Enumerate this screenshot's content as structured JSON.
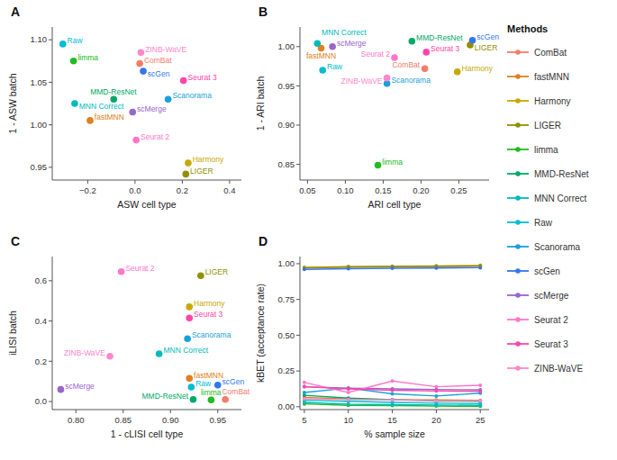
{
  "chart_data": [
    {
      "type": "scatter",
      "title": "A",
      "xlabel": "ASW cell type",
      "ylabel": "1 - ASW batch",
      "xlim": [
        -0.35,
        0.45
      ],
      "ylim": [
        0.935,
        1.115
      ],
      "xticks": [
        {
          "value": -0.2,
          "label": "−0.2"
        },
        {
          "value": 0.0,
          "label": "0.0"
        },
        0.2,
        0.4
      ],
      "yticks": [
        0.95,
        {
          "value": 1.0,
          "label": "1.00"
        },
        1.05,
        {
          "value": 1.1,
          "label": "1.10"
        }
      ],
      "grid": false,
      "series": [
        {
          "name": "ComBat",
          "color": "#f47c6a",
          "x": [
            0.02
          ],
          "values": [
            1.072
          ]
        },
        {
          "name": "fastMNN",
          "color": "#e08020",
          "x": [
            -0.19
          ],
          "values": [
            1.005
          ]
        },
        {
          "name": "Harmony",
          "color": "#c8a800",
          "x": [
            0.225
          ],
          "values": [
            0.955
          ]
        },
        {
          "name": "LIGER",
          "color": "#909000",
          "x": [
            0.215
          ],
          "values": [
            0.942
          ]
        },
        {
          "name": "limma",
          "color": "#22bb22",
          "x": [
            -0.26
          ],
          "values": [
            1.075
          ]
        },
        {
          "name": "MMD-ResNet",
          "color": "#00aa66",
          "x": [
            -0.09
          ],
          "values": [
            1.03
          ]
        },
        {
          "name": "MNN Correct",
          "color": "#00bbbb",
          "x": [
            -0.255
          ],
          "values": [
            1.025
          ]
        },
        {
          "name": "Raw",
          "color": "#00bcd4",
          "x": [
            -0.305
          ],
          "values": [
            1.095
          ]
        },
        {
          "name": "Scanorama",
          "color": "#1a9fdd",
          "x": [
            0.14
          ],
          "values": [
            1.03
          ]
        },
        {
          "name": "scGen",
          "color": "#3377ee",
          "x": [
            0.035
          ],
          "values": [
            1.063
          ]
        },
        {
          "name": "scMerge",
          "color": "#9966cc",
          "x": [
            -0.01
          ],
          "values": [
            1.015
          ]
        },
        {
          "name": "Seurat 2",
          "color": "#ff77cc",
          "x": [
            0.005
          ],
          "values": [
            0.982
          ]
        },
        {
          "name": "Seurat 3",
          "color": "#ff44aa",
          "x": [
            0.205
          ],
          "values": [
            1.052
          ]
        },
        {
          "name": "ZINB-WaVE",
          "color": "#ff88cc",
          "x": [
            0.025
          ],
          "values": [
            1.085
          ]
        }
      ]
    },
    {
      "type": "scatter",
      "title": "B",
      "xlabel": "ARI cell type",
      "ylabel": "1 - ARI batch",
      "xlim": [
        0.04,
        0.29
      ],
      "ylim": [
        0.83,
        1.025
      ],
      "xticks": [
        0.05,
        {
          "value": 0.1,
          "label": "0.10"
        },
        0.15,
        {
          "value": 0.2,
          "label": "0.20"
        },
        0.25
      ],
      "yticks": [
        0.85,
        {
          "value": 0.9,
          "label": "0.90"
        },
        0.95,
        {
          "value": 1.0,
          "label": "1.00"
        }
      ],
      "grid": false,
      "series": [
        {
          "name": "ComBat",
          "color": "#f47c6a",
          "x": [
            0.205
          ],
          "values": [
            0.972
          ]
        },
        {
          "name": "fastMNN",
          "color": "#e08020",
          "x": [
            0.068
          ],
          "values": [
            0.998
          ]
        },
        {
          "name": "Harmony",
          "color": "#c8a800",
          "x": [
            0.248
          ],
          "values": [
            0.968
          ]
        },
        {
          "name": "LIGER",
          "color": "#909000",
          "x": [
            0.265
          ],
          "values": [
            1.002
          ]
        },
        {
          "name": "limma",
          "color": "#22bb22",
          "x": [
            0.143
          ],
          "values": [
            0.849
          ]
        },
        {
          "name": "MMD-ResNet",
          "color": "#00aa66",
          "x": [
            0.188
          ],
          "values": [
            1.007
          ]
        },
        {
          "name": "MNN Correct",
          "color": "#00bbbb",
          "x": [
            0.063
          ],
          "values": [
            1.004
          ]
        },
        {
          "name": "Raw",
          "color": "#00bcd4",
          "x": [
            0.07
          ],
          "values": [
            0.97
          ]
        },
        {
          "name": "Scanorama",
          "color": "#1a9fdd",
          "x": [
            0.155
          ],
          "values": [
            0.953
          ]
        },
        {
          "name": "scGen",
          "color": "#3377ee",
          "x": [
            0.268
          ],
          "values": [
            1.008
          ]
        },
        {
          "name": "scMerge",
          "color": "#9966cc",
          "x": [
            0.083
          ],
          "values": [
            1.0
          ]
        },
        {
          "name": "Seurat 2",
          "color": "#ff77cc",
          "x": [
            0.165
          ],
          "values": [
            0.986
          ]
        },
        {
          "name": "Seurat 3",
          "color": "#ff44aa",
          "x": [
            0.207
          ],
          "values": [
            0.993
          ]
        },
        {
          "name": "ZINB-WaVE",
          "color": "#ff88cc",
          "x": [
            0.155
          ],
          "values": [
            0.96
          ]
        }
      ]
    },
    {
      "type": "scatter",
      "title": "C",
      "xlabel": "1 - cLISI cell type",
      "ylabel": "iLISI batch",
      "xlim": [
        0.775,
        0.975
      ],
      "ylim": [
        -0.04,
        0.72
      ],
      "xticks": [
        {
          "value": 0.8,
          "label": "0.80"
        },
        0.85,
        {
          "value": 0.9,
          "label": "0.90"
        },
        0.95
      ],
      "yticks": [
        {
          "value": 0.0,
          "label": "0.0"
        },
        0.2,
        0.4,
        0.6
      ],
      "grid": false,
      "series": [
        {
          "name": "ComBat",
          "color": "#f47c6a",
          "x": [
            0.958
          ],
          "values": [
            0.01
          ]
        },
        {
          "name": "fastMNN",
          "color": "#e08020",
          "x": [
            0.92
          ],
          "values": [
            0.115
          ]
        },
        {
          "name": "Harmony",
          "color": "#c8a800",
          "x": [
            0.92
          ],
          "values": [
            0.47
          ]
        },
        {
          "name": "LIGER",
          "color": "#909000",
          "x": [
            0.932
          ],
          "values": [
            0.625
          ]
        },
        {
          "name": "limma",
          "color": "#22bb22",
          "x": [
            0.943
          ],
          "values": [
            0.008
          ]
        },
        {
          "name": "MMD-ResNet",
          "color": "#00aa66",
          "x": [
            0.924
          ],
          "values": [
            0.01
          ]
        },
        {
          "name": "MNN Correct",
          "color": "#00bbbb",
          "x": [
            0.888
          ],
          "values": [
            0.237
          ]
        },
        {
          "name": "Raw",
          "color": "#00bcd4",
          "x": [
            0.922
          ],
          "values": [
            0.072
          ]
        },
        {
          "name": "Scanorama",
          "color": "#1a9fdd",
          "x": [
            0.918
          ],
          "values": [
            0.312
          ]
        },
        {
          "name": "scGen",
          "color": "#3377ee",
          "x": [
            0.95
          ],
          "values": [
            0.082
          ]
        },
        {
          "name": "scMerge",
          "color": "#9966cc",
          "x": [
            0.784
          ],
          "values": [
            0.06
          ]
        },
        {
          "name": "Seurat 2",
          "color": "#ff77cc",
          "x": [
            0.848
          ],
          "values": [
            0.645
          ]
        },
        {
          "name": "Seurat 3",
          "color": "#ff44aa",
          "x": [
            0.92
          ],
          "values": [
            0.415
          ]
        },
        {
          "name": "ZINB-WaVE",
          "color": "#ff88cc",
          "x": [
            0.836
          ],
          "values": [
            0.225
          ]
        }
      ]
    },
    {
      "type": "line",
      "title": "D",
      "xlabel": "% sample size",
      "ylabel": "kBET (acceptance rate)",
      "xlim": [
        4.5,
        26
      ],
      "ylim": [
        -0.02,
        1.05
      ],
      "xticks": [
        5,
        10,
        15,
        20,
        25
      ],
      "yticks": [
        {
          "value": 0.0,
          "label": "0.00"
        },
        0.25,
        {
          "value": 0.5,
          "label": "0.50"
        },
        0.75,
        {
          "value": 1.0,
          "label": "1.00"
        }
      ],
      "grid": false,
      "marker": "circle",
      "legend": "right",
      "legend_title": "Methods",
      "x": [
        5,
        10,
        15,
        20,
        25
      ],
      "series": [
        {
          "name": "ComBat",
          "color": "#f47c6a",
          "values": [
            0.97,
            0.975,
            0.978,
            0.98,
            0.982
          ]
        },
        {
          "name": "fastMNN",
          "color": "#e08020",
          "values": [
            0.065,
            0.055,
            0.05,
            0.048,
            0.045
          ]
        },
        {
          "name": "Harmony",
          "color": "#c8a800",
          "values": [
            0.975,
            0.98,
            0.983,
            0.985,
            0.988
          ]
        },
        {
          "name": "LIGER",
          "color": "#909000",
          "values": [
            0.972,
            0.978,
            0.98,
            0.982,
            0.985
          ]
        },
        {
          "name": "limma",
          "color": "#22bb22",
          "values": [
            0.02,
            0.01,
            0.008,
            0.005,
            0.003
          ]
        },
        {
          "name": "MMD-ResNet",
          "color": "#00aa66",
          "values": [
            0.08,
            0.06,
            0.05,
            0.04,
            0.038
          ]
        },
        {
          "name": "MNN Correct",
          "color": "#00bbbb",
          "values": [
            0.03,
            0.018,
            0.015,
            0.012,
            0.01
          ]
        },
        {
          "name": "Raw",
          "color": "#00bcd4",
          "values": [
            0.045,
            0.038,
            0.03,
            0.025,
            0.022
          ]
        },
        {
          "name": "Scanorama",
          "color": "#1a9fdd",
          "values": [
            0.1,
            0.13,
            0.09,
            0.075,
            0.095
          ]
        },
        {
          "name": "scGen",
          "color": "#3377ee",
          "values": [
            0.96,
            0.965,
            0.968,
            0.97,
            0.972
          ]
        },
        {
          "name": "scMerge",
          "color": "#9966cc",
          "values": [
            0.14,
            0.13,
            0.125,
            0.12,
            0.118
          ]
        },
        {
          "name": "Seurat 2",
          "color": "#ff77cc",
          "values": [
            0.17,
            0.1,
            0.18,
            0.14,
            0.15
          ]
        },
        {
          "name": "Seurat 3",
          "color": "#ff44aa",
          "values": [
            0.14,
            0.125,
            0.115,
            0.11,
            0.108
          ]
        },
        {
          "name": "ZINB-WaVE",
          "color": "#ff88cc",
          "values": [
            0.055,
            0.05,
            0.048,
            0.042,
            0.042
          ]
        }
      ]
    }
  ]
}
